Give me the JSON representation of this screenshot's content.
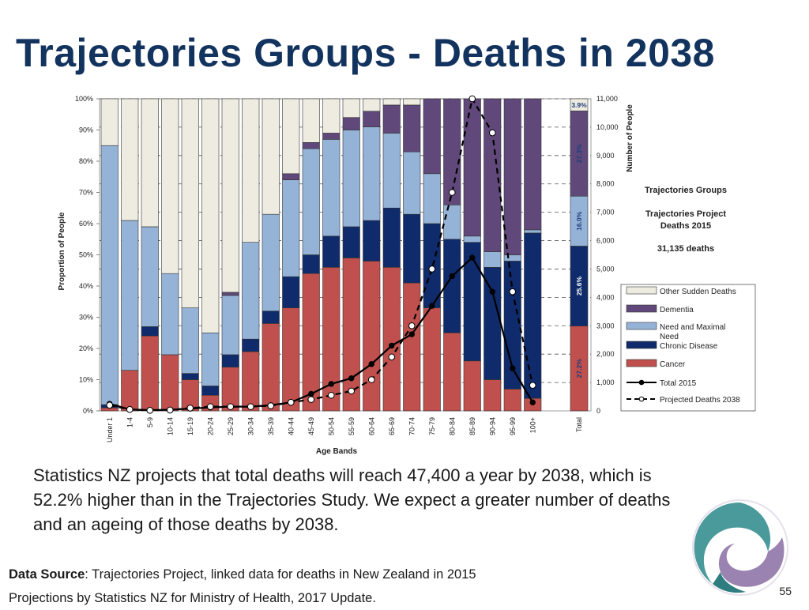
{
  "slide": {
    "title": "Trajectories Groups - Deaths in 2038",
    "body": "Statistics NZ projects that total deaths will reach 47,400 a year by 2038, which is 52.2% higher than in the Trajectories Study. We expect a greater number of deaths and an ageing of those deaths by 2038.",
    "source_label": "Data Source",
    "source_text": ": Trajectories Project, linked data for deaths in New Zealand in 2015",
    "source_line2": "Projections by Statistics NZ for Ministry of Health, 2017 Update.",
    "page_number": "55"
  },
  "chart_data": {
    "type": "bar",
    "stacked": true,
    "xlabel": "Age Bands",
    "ylabel": "Proportion of People",
    "y2label": "Number of People",
    "categories": [
      "Under 1",
      "1-4",
      "5-9",
      "10-14",
      "15-19",
      "20-24",
      "25-29",
      "30-34",
      "35-39",
      "40-44",
      "45-49",
      "50-54",
      "55-59",
      "60-64",
      "65-69",
      "70-74",
      "75-79",
      "80-84",
      "85-89",
      "90-94",
      "95-99",
      "100+"
    ],
    "total_label": "Total",
    "ylim": [
      0,
      100
    ],
    "y2lim": [
      0,
      11000
    ],
    "yticks": [
      "0%",
      "10%",
      "20%",
      "30%",
      "40%",
      "50%",
      "60%",
      "70%",
      "80%",
      "90%",
      "100%"
    ],
    "y2ticks": [
      "0",
      "1,000",
      "2,000",
      "3,000",
      "4,000",
      "5,000",
      "6,000",
      "7,000",
      "8,000",
      "9,000",
      "10,000",
      "11,000"
    ],
    "series": [
      {
        "name": "Cancer",
        "color": "#c0504d",
        "values": [
          1,
          13,
          24,
          18,
          10,
          5,
          14,
          19,
          28,
          33,
          44,
          46,
          49,
          48,
          46,
          41,
          33,
          25,
          16,
          10,
          7,
          4
        ],
        "total": 27.2
      },
      {
        "name": "Chronic Disease",
        "color": "#0f2b6b",
        "values": [
          1,
          0,
          3,
          0,
          2,
          3,
          4,
          4,
          4,
          10,
          6,
          10,
          10,
          13,
          19,
          22,
          27,
          30,
          38,
          36,
          41,
          53
        ],
        "total": 25.6
      },
      {
        "name": "Need and Maximal Need",
        "color": "#95b3d7",
        "values": [
          83,
          48,
          32,
          26,
          21,
          17,
          19,
          31,
          31,
          31,
          34,
          31,
          31,
          30,
          24,
          20,
          16,
          11,
          2,
          5,
          2,
          1
        ],
        "total": 16.0
      },
      {
        "name": "Dementia",
        "color": "#60497a",
        "values": [
          0,
          0,
          0,
          0,
          0,
          0,
          1,
          0,
          0,
          2,
          2,
          2,
          4,
          5,
          9,
          15,
          24,
          34,
          44,
          49,
          50,
          42
        ],
        "total": 27.3
      },
      {
        "name": "Other Sudden Deaths",
        "color": "#eeece1",
        "values": [
          15,
          39,
          41,
          56,
          67,
          75,
          62,
          46,
          37,
          24,
          14,
          11,
          6,
          4,
          2,
          2,
          0,
          0,
          0,
          0,
          0,
          0
        ],
        "total": 3.9
      }
    ],
    "total_labels": [
      "27.2%",
      "25.6%",
      "16.0%",
      "27.3%",
      "3.9%"
    ],
    "lines": [
      {
        "name": "Total  2015",
        "values": [
          250,
          50,
          30,
          40,
          80,
          120,
          150,
          150,
          200,
          300,
          600,
          950,
          1150,
          1650,
          2300,
          2700,
          3700,
          4750,
          5400,
          4200,
          1500,
          300
        ]
      },
      {
        "name": "Projected Deaths 2038",
        "values": [
          200,
          50,
          20,
          30,
          100,
          150,
          150,
          150,
          180,
          300,
          400,
          550,
          700,
          1100,
          1900,
          3000,
          5000,
          7700,
          11000,
          9800,
          4200,
          900
        ]
      }
    ],
    "legend": {
      "title": "Trajectories Groups",
      "subtitle": "Trajectories Project Deaths 2015",
      "deaths": "31,135 deaths",
      "items": [
        {
          "label": "Other Sudden Deaths",
          "color": "#eeece1",
          "kind": "box"
        },
        {
          "label": "Dementia",
          "color": "#60497a",
          "kind": "box"
        },
        {
          "label": "Need and Maximal Need",
          "color": "#95b3d7",
          "kind": "box"
        },
        {
          "label": "Chronic Disease",
          "color": "#0f2b6b",
          "kind": "box"
        },
        {
          "label": "Cancer",
          "color": "#c0504d",
          "kind": "box"
        },
        {
          "label": "Total  2015",
          "color": "#000000",
          "kind": "solid"
        },
        {
          "label": "Projected Deaths 2038",
          "color": "#000000",
          "kind": "dashed"
        }
      ]
    }
  }
}
